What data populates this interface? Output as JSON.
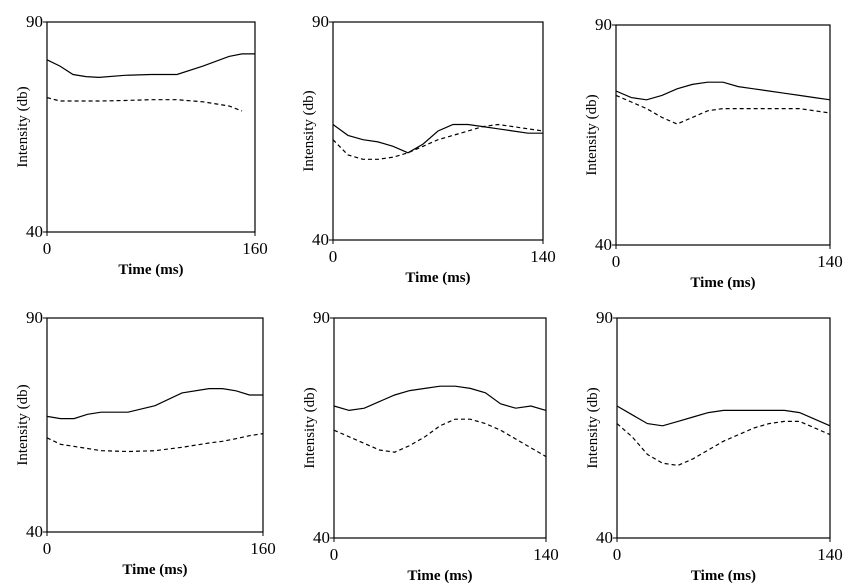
{
  "chart_data": [
    {
      "type": "line",
      "x_label": "Time (ms)",
      "y_label": "Intensity (db)",
      "x": [
        0,
        10,
        20,
        30,
        40,
        60,
        80,
        100,
        120,
        140,
        150,
        160
      ],
      "series": [
        {
          "color": "#000000",
          "linestyle": "solid",
          "values": [
            81,
            79.5,
            77.5,
            77,
            76.8,
            77.3,
            77.5,
            77.5,
            79.5,
            81.8,
            82.4,
            82.4
          ]
        },
        {
          "color": "#000000",
          "linestyle": "dashed",
          "values": [
            72,
            71.2,
            71.2,
            71.2,
            71.2,
            71.3,
            71.5,
            71.5,
            71,
            70,
            68.8,
            null
          ]
        }
      ],
      "xlim": [
        0,
        160
      ],
      "xticks": [
        0,
        160
      ],
      "ylim": [
        40,
        90
      ],
      "yticks": [
        40,
        90
      ]
    },
    {
      "type": "line",
      "x_label": "Time (ms)",
      "y_label": "Intensity (db)",
      "x": [
        0,
        10,
        20,
        30,
        40,
        50,
        60,
        70,
        80,
        90,
        100,
        110,
        120,
        130,
        140
      ],
      "series": [
        {
          "color": "#000000",
          "linestyle": "solid",
          "values": [
            66.5,
            64,
            63,
            62.5,
            61.5,
            60,
            62,
            65,
            66.5,
            66.5,
            66,
            65.5,
            65,
            64.5,
            64.5
          ]
        },
        {
          "color": "#000000",
          "linestyle": "dashed",
          "values": [
            63,
            59.5,
            58.5,
            58.5,
            59,
            60,
            61.5,
            63,
            64,
            65,
            66,
            66.5,
            66,
            65.5,
            65
          ]
        }
      ],
      "xlim": [
        0,
        140
      ],
      "xticks": [
        0,
        140
      ],
      "ylim": [
        40,
        90
      ],
      "yticks": [
        40,
        90
      ]
    },
    {
      "type": "line",
      "x_label": "Time (ms)",
      "y_label": "Intensity (db)",
      "x": [
        0,
        10,
        20,
        30,
        40,
        50,
        60,
        70,
        80,
        90,
        100,
        110,
        120,
        130,
        140
      ],
      "series": [
        {
          "color": "#000000",
          "linestyle": "solid",
          "values": [
            75,
            73.5,
            73,
            74,
            75.5,
            76.5,
            77,
            77,
            76,
            75.5,
            75,
            74.5,
            74,
            73.5,
            73
          ]
        },
        {
          "color": "#000000",
          "linestyle": "dashed",
          "values": [
            74,
            72.5,
            71,
            69,
            67.5,
            69,
            70.5,
            71,
            71,
            71,
            71,
            71,
            71,
            70.5,
            70
          ]
        }
      ],
      "xlim": [
        0,
        140
      ],
      "xticks": [
        0,
        140
      ],
      "ylim": [
        40,
        90
      ],
      "yticks": [
        40,
        90
      ]
    },
    {
      "type": "line",
      "x_label": "Time (ms)",
      "y_label": "Intensity (db)",
      "x": [
        0,
        10,
        20,
        30,
        40,
        60,
        80,
        100,
        120,
        130,
        140,
        150,
        160
      ],
      "series": [
        {
          "color": "#000000",
          "linestyle": "solid",
          "values": [
            67,
            66.5,
            66.5,
            67.5,
            68,
            68,
            69.5,
            72.5,
            73.5,
            73.5,
            73,
            72,
            72
          ]
        },
        {
          "color": "#000000",
          "linestyle": "dashed",
          "values": [
            62,
            60.5,
            60,
            59.5,
            59,
            58.8,
            59,
            59.8,
            60.8,
            61.2,
            61.8,
            62.5,
            63
          ]
        }
      ],
      "xlim": [
        0,
        160
      ],
      "xticks": [
        0,
        160
      ],
      "ylim": [
        40,
        90
      ],
      "yticks": [
        40,
        90
      ]
    },
    {
      "type": "line",
      "x_label": "Time (ms)",
      "y_label": "Intensity (db)",
      "x": [
        0,
        10,
        20,
        30,
        40,
        50,
        60,
        70,
        80,
        90,
        100,
        110,
        120,
        130,
        140
      ],
      "series": [
        {
          "color": "#000000",
          "linestyle": "solid",
          "values": [
            70,
            69,
            69.5,
            71,
            72.5,
            73.5,
            74,
            74.5,
            74.5,
            74,
            73,
            70.5,
            69.5,
            70,
            69
          ]
        },
        {
          "color": "#000000",
          "linestyle": "dashed",
          "values": [
            64.5,
            63,
            61.5,
            60,
            59.5,
            61,
            63,
            65.5,
            67,
            67,
            66,
            64.5,
            62.5,
            60.5,
            58.5
          ]
        }
      ],
      "xlim": [
        0,
        140
      ],
      "xticks": [
        0,
        140
      ],
      "ylim": [
        40,
        90
      ],
      "yticks": [
        40,
        90
      ]
    },
    {
      "type": "line",
      "x_label": "Time (ms)",
      "y_label": "Intensity (db)",
      "x": [
        0,
        10,
        20,
        30,
        40,
        50,
        60,
        70,
        80,
        90,
        100,
        110,
        120,
        130,
        140
      ],
      "series": [
        {
          "color": "#000000",
          "linestyle": "solid",
          "values": [
            70,
            68,
            66,
            65.5,
            66.5,
            67.5,
            68.5,
            69,
            69,
            69,
            69,
            69,
            68.5,
            67,
            65.5
          ]
        },
        {
          "color": "#000000",
          "linestyle": "dashed",
          "values": [
            66,
            63,
            59,
            57,
            56.5,
            58,
            60,
            62,
            63.5,
            65,
            66,
            66.5,
            66.5,
            65,
            63.5
          ]
        }
      ],
      "xlim": [
        0,
        140
      ],
      "xticks": [
        0,
        140
      ],
      "ylim": [
        40,
        90
      ],
      "yticks": [
        40,
        90
      ]
    }
  ]
}
